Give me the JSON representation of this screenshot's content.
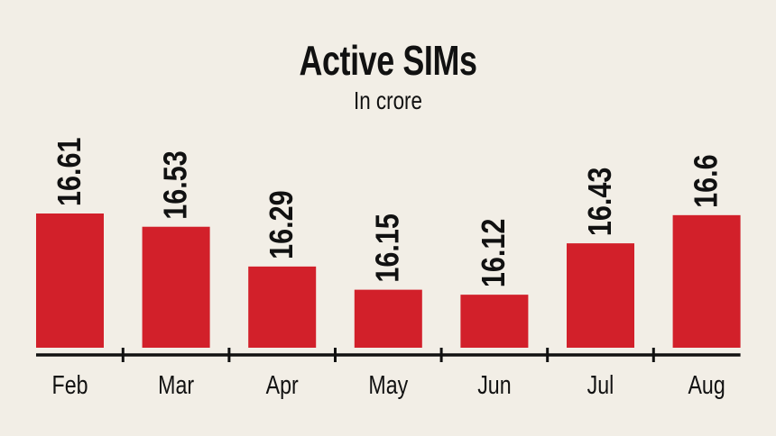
{
  "chart_data": {
    "type": "bar",
    "title": "Active SIMs",
    "subtitle": "In crore",
    "categories": [
      "Feb",
      "Mar",
      "Apr",
      "May",
      "Jun",
      "Jul",
      "Aug"
    ],
    "values": [
      16.61,
      16.53,
      16.29,
      16.15,
      16.12,
      16.43,
      16.6
    ],
    "value_labels": [
      "16.61",
      "16.53",
      "16.29",
      "16.15",
      "16.12",
      "16.43",
      "16.6"
    ],
    "xlabel": "",
    "ylabel": "",
    "ylim": [
      15.8,
      16.7
    ],
    "grid": false,
    "colors": {
      "bar": "#d2202a",
      "background": "#f2eee6",
      "axis": "#111111"
    }
  }
}
